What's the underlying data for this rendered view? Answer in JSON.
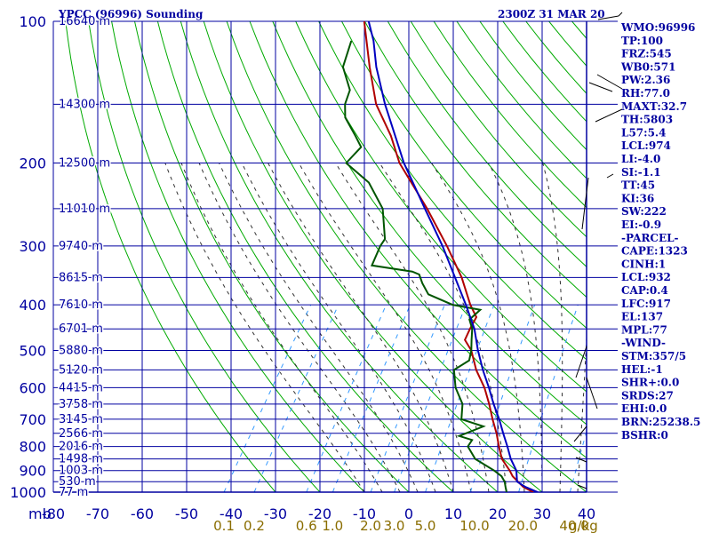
{
  "header": {
    "station": "YPCC (96996) Sounding",
    "valid_time": "2300Z 31 MAR 20"
  },
  "colors": {
    "grid": "#0000a0",
    "dry_adiabat": "#00aa00",
    "moist_adiabat": "#333333",
    "mixing_ratio": "#3399ff",
    "temperature": "#b00000",
    "dewpoint": "#005500",
    "parcel": "#0000c0",
    "mixing_label": "#8a6d00"
  },
  "pressure_labels": [
    "100",
    "200",
    "300",
    "400",
    "500",
    "600",
    "700",
    "800",
    "900",
    "1000"
  ],
  "temp_labels": [
    "-80",
    "-70",
    "-60",
    "-50",
    "-40",
    "-30",
    "-20",
    "-10",
    "0",
    "10",
    "20",
    "30",
    "40"
  ],
  "mb_label": "mb",
  "heights": [
    {
      "p": 100,
      "label": "16640 m"
    },
    {
      "p": 150,
      "label": "14300 m"
    },
    {
      "p": 200,
      "label": "12500 m"
    },
    {
      "p": 250,
      "label": "11010 m"
    },
    {
      "p": 300,
      "label": "9740 m"
    },
    {
      "p": 350,
      "label": "8615 m"
    },
    {
      "p": 400,
      "label": "7610 m"
    },
    {
      "p": 450,
      "label": "6701 m"
    },
    {
      "p": 500,
      "label": "5880 m"
    },
    {
      "p": 550,
      "label": "5120 m"
    },
    {
      "p": 600,
      "label": "4415 m"
    },
    {
      "p": 650,
      "label": "3758 m"
    },
    {
      "p": 700,
      "label": "3145 m"
    },
    {
      "p": 750,
      "label": "2566 m"
    },
    {
      "p": 800,
      "label": "2016 m"
    },
    {
      "p": 850,
      "label": "1498 m"
    },
    {
      "p": 900,
      "label": "1003 m"
    },
    {
      "p": 950,
      "label": "530 m"
    },
    {
      "p": 1000,
      "label": "77 m"
    }
  ],
  "mixing_ratio_labels": [
    {
      "w": 0.1,
      "label": "0.1"
    },
    {
      "w": 0.2,
      "label": "0.2"
    },
    {
      "w": 0.6,
      "label": "0.6"
    },
    {
      "w": 1.0,
      "label": "1.0"
    },
    {
      "w": 2.0,
      "label": "2.0"
    },
    {
      "w": 3.0,
      "label": "3.0"
    },
    {
      "w": 5.0,
      "label": "5.0"
    },
    {
      "w": 10.0,
      "label": "10.0"
    },
    {
      "w": 20.0,
      "label": "20.0"
    },
    {
      "w": 40.0,
      "label": "40.0"
    }
  ],
  "mixing_unit": "g/kg",
  "indices": [
    "WMO:96996",
    "TP:100",
    "FRZ:545",
    "WB0:571",
    "PW:2.36",
    "RH:77.0",
    "MAXT:32.7",
    "TH:5803",
    "L57:5.4",
    "LCL:974",
    "LI:-4.0",
    "SI:-1.1",
    "TT:45",
    "KI:36",
    "SW:222",
    "EI:-0.9",
    "-PARCEL-",
    "CAPE:1323",
    "CINH:1",
    "LCL:932",
    "CAP:0.4",
    "LFC:917",
    "EL:137",
    "MPL:77",
    "-WIND-",
    "STM:357/5",
    "HEL:-1",
    "SHR+:0.0",
    "SRDS:27",
    "EHI:0.0",
    "BRN:25238.5",
    "BSHR:0"
  ],
  "chart_data": {
    "type": "line",
    "title": "YPCC (96996) Sounding",
    "subtitle": "2300Z 31 MAR 20",
    "xlabel": "",
    "ylabel": "mb",
    "xlim": [
      -80,
      40
    ],
    "ylim": [
      1000,
      100
    ],
    "y_scale": "log",
    "grid": true,
    "series": [
      {
        "role": "temperature",
        "points": [
          [
            1000,
            28
          ],
          [
            975,
            25
          ],
          [
            950,
            23
          ],
          [
            925,
            21
          ],
          [
            900,
            19.5
          ],
          [
            850,
            16
          ],
          [
            800,
            13.5
          ],
          [
            750,
            11
          ],
          [
            700,
            8
          ],
          [
            650,
            5
          ],
          [
            600,
            1.5
          ],
          [
            550,
            -3
          ],
          [
            500,
            -7
          ],
          [
            475,
            -10
          ],
          [
            450,
            -10.5
          ],
          [
            425,
            -10.8
          ],
          [
            400,
            -14
          ],
          [
            350,
            -20
          ],
          [
            300,
            -28
          ],
          [
            250,
            -38
          ],
          [
            200,
            -51
          ],
          [
            175,
            -57
          ],
          [
            150,
            -65
          ],
          [
            125,
            -72
          ],
          [
            100,
            -80
          ]
        ]
      },
      {
        "role": "dewpoint",
        "points": [
          [
            1000,
            22
          ],
          [
            975,
            21
          ],
          [
            950,
            20
          ],
          [
            925,
            18.5
          ],
          [
            900,
            16
          ],
          [
            850,
            10
          ],
          [
            800,
            6.5
          ],
          [
            775,
            6.5
          ],
          [
            760,
            3
          ],
          [
            725,
            7
          ],
          [
            700,
            1
          ],
          [
            650,
            -1
          ],
          [
            600,
            -5
          ],
          [
            550,
            -8
          ],
          [
            525,
            -6
          ],
          [
            500,
            -7
          ],
          [
            475,
            -8.5
          ],
          [
            450,
            -10
          ],
          [
            430,
            -12
          ],
          [
            410,
            -11
          ],
          [
            400,
            -18
          ],
          [
            380,
            -25
          ],
          [
            360,
            -28
          ],
          [
            345,
            -30
          ],
          [
            340,
            -32
          ],
          [
            330,
            -42
          ],
          [
            300,
            -43
          ],
          [
            290,
            -43
          ],
          [
            250,
            -48
          ],
          [
            220,
            -55
          ],
          [
            200,
            -63
          ],
          [
            185,
            -62
          ],
          [
            175,
            -65
          ],
          [
            160,
            -70
          ],
          [
            150,
            -72
          ],
          [
            140,
            -73
          ],
          [
            125,
            -78
          ],
          [
            110,
            -80
          ]
        ]
      },
      {
        "role": "parcel",
        "points": [
          [
            1000,
            29
          ],
          [
            975,
            25.5
          ],
          [
            950,
            22.8
          ],
          [
            900,
            21
          ],
          [
            850,
            18
          ],
          [
            800,
            15.4
          ],
          [
            750,
            12.5
          ],
          [
            700,
            9.5
          ],
          [
            650,
            6
          ],
          [
            600,
            2.5
          ],
          [
            550,
            -1.5
          ],
          [
            500,
            -5.5
          ],
          [
            450,
            -9.5
          ],
          [
            400,
            -15
          ],
          [
            350,
            -21.5
          ],
          [
            300,
            -29
          ],
          [
            250,
            -38.5
          ],
          [
            200,
            -50
          ],
          [
            150,
            -63
          ],
          [
            125,
            -70.5
          ],
          [
            110,
            -75
          ],
          [
            100,
            -79
          ]
        ]
      }
    ]
  }
}
